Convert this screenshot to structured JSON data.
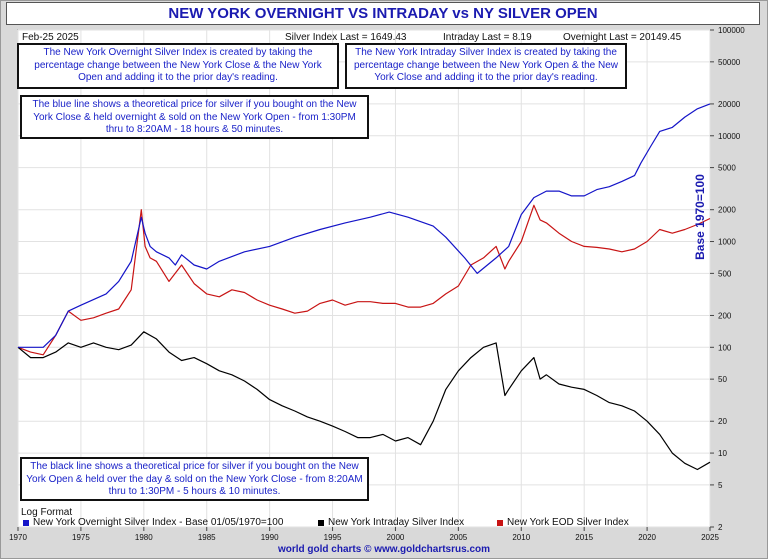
{
  "title": "NEW YORK OVERNIGHT VS INTRADAY vs NY SILVER OPEN",
  "header": {
    "date": "Feb-25  2025",
    "silver_last": "Silver Index Last = 1649.43",
    "intraday_last": "Intraday Last = 8.19",
    "overnight_last": "Overnight Last = 20149.45"
  },
  "notes": {
    "overnight": "The New York Overnight Silver Index is created by taking the percentage change between the New York Close & the New York Open and adding it to the prior day's reading.",
    "intraday": "The New York Intraday Silver Index is created by taking the percentage change between the New York Open & the New York Close and adding it to the prior day's reading.",
    "blue": "The blue line shows a theoretical price for silver if you bought on the New York Close & held overnight & sold on the New York Open - from 1:30PM thru to 8:20AM - 18 hours & 50 minutes.",
    "black": "The black line shows a theoretical price for silver if you bought on the New York Open & held over the day & sold on the New York Close - from 8:20AM thru to 1:30PM - 5 hours & 10 minutes."
  },
  "log_format": "Log Format",
  "legend": [
    {
      "label": "New York Overnight Silver Index - Base 01/05/1970=100",
      "color": "#1414c8"
    },
    {
      "label": "New York Intraday Silver Index",
      "color": "#000000"
    },
    {
      "label": "New York EOD Silver Index",
      "color": "#c81414"
    }
  ],
  "footer": "world gold charts © www.goldchartsrus.com",
  "chart_data": {
    "type": "line",
    "yscale": "log",
    "ylabel": "Base 1970=100",
    "xlim": [
      1970,
      2025
    ],
    "ylim": [
      2,
      100000
    ],
    "x_ticks": [
      "1970",
      "1975",
      "1980",
      "1985",
      "1990",
      "1995",
      "2000",
      "2005",
      "2010",
      "2015",
      "2020",
      "2025"
    ],
    "y_ticks": [
      "2",
      "5",
      "10",
      "20",
      "50",
      "100",
      "200",
      "500",
      "1000",
      "2000",
      "5000",
      "10000",
      "20000",
      "50000",
      "100000"
    ],
    "series": [
      {
        "name": "New York Overnight Silver Index - Base 01/05/1970=100",
        "color": "#1414c8",
        "x": [
          1970,
          1972,
          1973,
          1974,
          1975,
          1977,
          1978,
          1979,
          1979.8,
          1980.1,
          1980.5,
          1981,
          1982,
          1982.5,
          1983,
          1984,
          1985,
          1986,
          1988,
          1990,
          1992,
          1994,
          1996,
          1998,
          1999.5,
          2001,
          2003,
          2004,
          2005.5,
          2006.5,
          2008,
          2009,
          2010,
          2011,
          2012,
          2013,
          2014,
          2015,
          2016,
          2017,
          2018,
          2019,
          2019.5,
          2020.3,
          2021,
          2022,
          2023,
          2024,
          2025
        ],
        "y": [
          100,
          100,
          130,
          220,
          250,
          320,
          420,
          650,
          1700,
          1200,
          900,
          800,
          700,
          600,
          750,
          600,
          550,
          650,
          800,
          900,
          1100,
          1300,
          1500,
          1700,
          1900,
          1700,
          1400,
          1100,
          700,
          500,
          700,
          900,
          1800,
          2600,
          3000,
          3000,
          2700,
          2700,
          3100,
          3300,
          3700,
          4200,
          5500,
          8000,
          11000,
          12000,
          15000,
          18000,
          20000
        ]
      },
      {
        "name": "New York Intraday Silver Index",
        "color": "#000000",
        "x": [
          1970,
          1971,
          1972,
          1973,
          1974,
          1975,
          1976,
          1977,
          1978,
          1979,
          1980,
          1981,
          1982,
          1983,
          1984,
          1985,
          1986,
          1987,
          1988,
          1989,
          1990,
          1991,
          1992,
          1993,
          1994,
          1995,
          1996,
          1997,
          1998,
          1999,
          2000,
          2001,
          2002,
          2003,
          2004,
          2005,
          2006,
          2007,
          2008,
          2008.7,
          2009,
          2010,
          2011,
          2011.5,
          2012,
          2013,
          2014,
          2015,
          2016,
          2017,
          2018,
          2019,
          2020,
          2021,
          2022,
          2023,
          2024,
          2025
        ],
        "y": [
          100,
          80,
          80,
          90,
          110,
          100,
          110,
          100,
          95,
          105,
          140,
          120,
          90,
          75,
          80,
          70,
          60,
          55,
          48,
          40,
          32,
          28,
          25,
          22,
          20,
          18,
          16,
          14,
          14,
          15,
          13,
          14,
          12,
          20,
          40,
          60,
          80,
          100,
          110,
          35,
          40,
          60,
          80,
          50,
          55,
          45,
          42,
          40,
          35,
          30,
          28,
          25,
          20,
          15,
          10,
          8,
          7,
          8.19
        ]
      },
      {
        "name": "New York EOD Silver Index",
        "color": "#c81414",
        "x": [
          1970,
          1971,
          1972,
          1973,
          1974,
          1975,
          1976,
          1977,
          1978,
          1979,
          1979.8,
          1980.1,
          1980.5,
          1981,
          1982,
          1983,
          1984,
          1985,
          1986,
          1987,
          1988,
          1989,
          1990,
          1991,
          1992,
          1993,
          1994,
          1995,
          1996,
          1997,
          1998,
          1999,
          2000,
          2001,
          2002,
          2003,
          2004,
          2005,
          2006,
          2007,
          2008,
          2008.7,
          2009,
          2010,
          2011,
          2011.5,
          2012,
          2013,
          2014,
          2015,
          2016,
          2017,
          2018,
          2019,
          2020,
          2021,
          2022,
          2023,
          2024,
          2025
        ],
        "y": [
          100,
          90,
          85,
          130,
          220,
          180,
          190,
          210,
          230,
          350,
          2000,
          900,
          700,
          650,
          420,
          600,
          400,
          320,
          300,
          350,
          330,
          280,
          250,
          230,
          210,
          220,
          260,
          280,
          250,
          270,
          270,
          260,
          260,
          240,
          240,
          260,
          320,
          380,
          600,
          700,
          900,
          550,
          650,
          1000,
          2200,
          1600,
          1500,
          1200,
          1000,
          900,
          880,
          850,
          800,
          850,
          1000,
          1300,
          1200,
          1300,
          1450,
          1649.43
        ]
      }
    ]
  }
}
